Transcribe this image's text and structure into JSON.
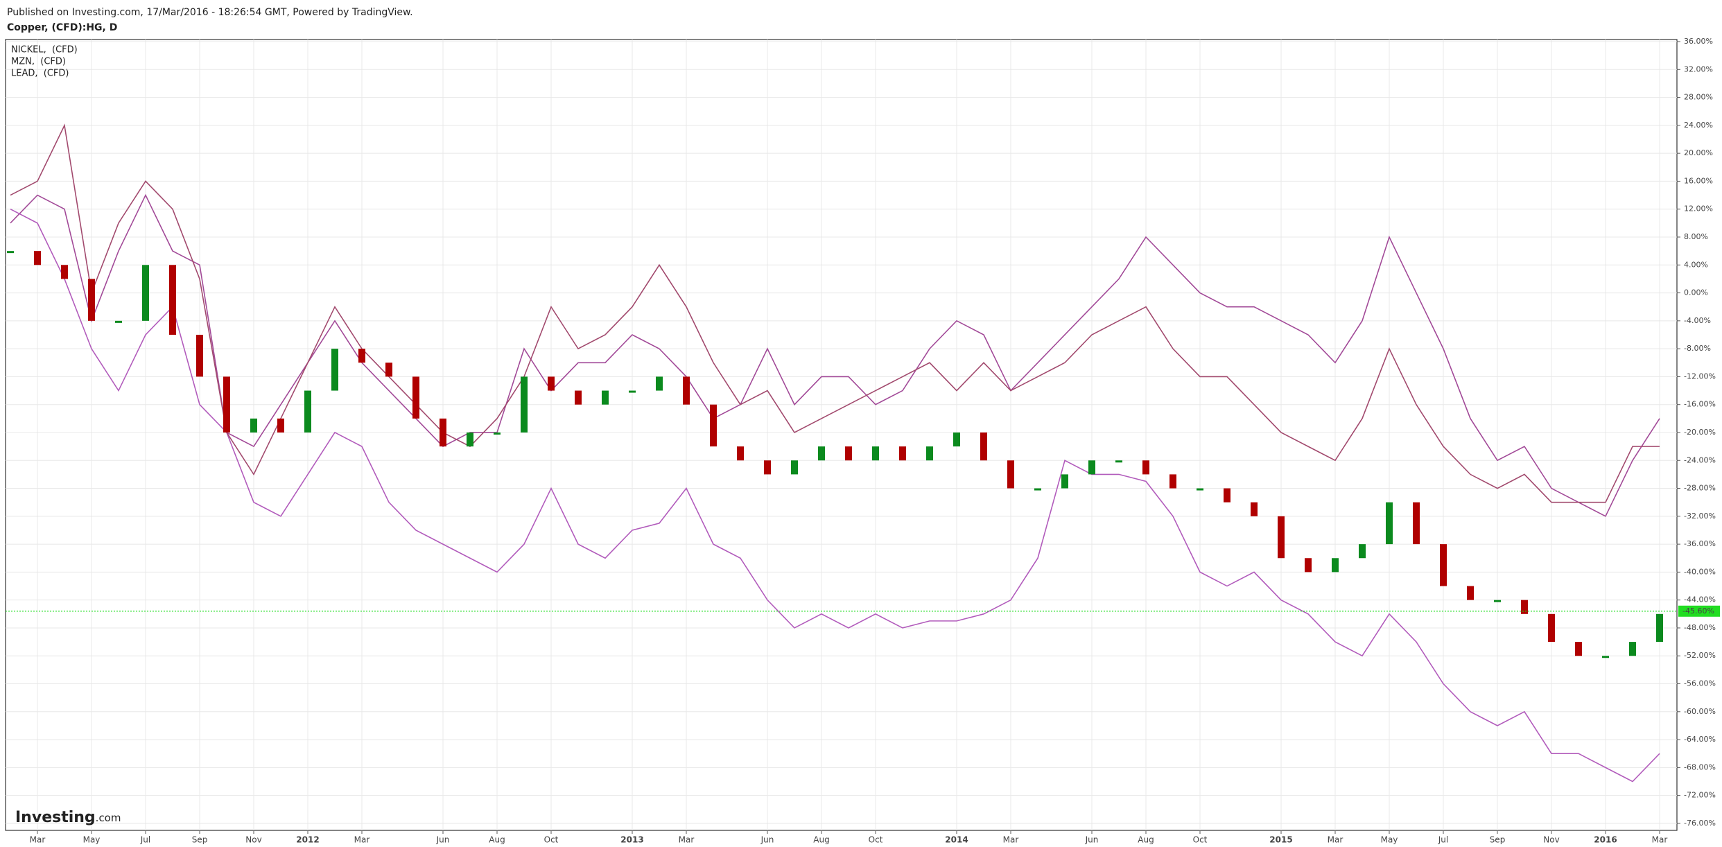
{
  "header": {
    "published": "Published on Investing.com, 17/Mar/2016 - 18:26:54 GMT, Powered by TradingView.",
    "symbol": "Copper, (CFD):HG, D"
  },
  "logo": {
    "name": "Investing",
    "suffix": ".com"
  },
  "chart_data": {
    "type": "line",
    "categories": [
      null,
      "Mar",
      null,
      "May",
      null,
      "Jul",
      null,
      "Sep",
      null,
      "Nov",
      null,
      "2012",
      null,
      "Mar",
      null,
      null,
      "Jun",
      null,
      "Aug",
      null,
      "Oct",
      null,
      null,
      "2013",
      null,
      "Mar",
      null,
      null,
      "Jun",
      null,
      "Aug",
      null,
      "Oct",
      null,
      null,
      "2014",
      null,
      "Mar",
      null,
      null,
      "Jun",
      null,
      "Aug",
      null,
      "Oct",
      null,
      null,
      "2015",
      null,
      "Mar",
      null,
      "May",
      null,
      "Jul",
      null,
      "Sep",
      null,
      "Nov",
      null,
      "2016",
      null,
      "Mar"
    ],
    "series": [
      {
        "name": "Copper, (CFD):HG, D",
        "style": "candle",
        "up_color": "#0b8a1e",
        "down_color": "#b00000",
        "values": [
          6,
          4,
          2,
          -4,
          -4,
          4,
          -6,
          -12,
          -20,
          -18,
          -20,
          -14,
          -8,
          -10,
          -12,
          -18,
          -22,
          -20,
          -20,
          -12,
          -14,
          -16,
          -14,
          -14,
          -12,
          -16,
          -22,
          -24,
          -26,
          -24,
          -22,
          -24,
          -22,
          -24,
          -22,
          -20,
          -24,
          -28,
          -28,
          -26,
          -24,
          -24,
          -26,
          -28,
          -28,
          -30,
          -32,
          -38,
          -40,
          -38,
          -36,
          -30,
          -36,
          -42,
          -44,
          -44,
          -46,
          -50,
          -52,
          -52,
          -50,
          -46
        ]
      },
      {
        "name": "NICKEL,  (CFD)",
        "color": "#a24a98",
        "values": [
          10,
          14,
          12,
          -4,
          6,
          14,
          6,
          4,
          -20,
          -22,
          -16,
          -10,
          -4,
          -10,
          -14,
          -18,
          -22,
          -20,
          -20,
          -8,
          -14,
          -10,
          -10,
          -6,
          -8,
          -12,
          -18,
          -16,
          -8,
          -16,
          -12,
          -12,
          -16,
          -14,
          -8,
          -4,
          -6,
          -14,
          -10,
          -6,
          -2,
          2,
          8,
          4,
          0,
          -2,
          -2,
          -4,
          -6,
          -10,
          -4,
          8,
          0,
          -8,
          -18,
          -24,
          -22,
          -28,
          -30,
          -32,
          -24,
          -18
        ]
      },
      {
        "name": "MZN,  (CFD)",
        "color": "#b25cbc",
        "values": [
          12,
          10,
          2,
          -8,
          -14,
          -6,
          -2,
          -16,
          -20,
          -30,
          -32,
          -26,
          -20,
          -22,
          -30,
          -34,
          -36,
          -38,
          -40,
          -36,
          -28,
          -36,
          -38,
          -34,
          -33,
          -28,
          -36,
          -38,
          -44,
          -48,
          -46,
          -48,
          -46,
          -48,
          -47,
          -47,
          -46,
          -44,
          -38,
          -24,
          -26,
          -26,
          -27,
          -32,
          -40,
          -42,
          -40,
          -44,
          -46,
          -50,
          -52,
          -46,
          -50,
          -56,
          -60,
          -62,
          -60,
          -66,
          -66,
          -68,
          -70,
          -66
        ]
      },
      {
        "name": "LEAD,  (CFD)",
        "color": "#a24a6e",
        "values": [
          14,
          16,
          24,
          0,
          10,
          16,
          12,
          2,
          -20,
          -26,
          -18,
          -10,
          -2,
          -8,
          -12,
          -16,
          -20,
          -22,
          -18,
          -12,
          -2,
          -8,
          -6,
          -2,
          4,
          -2,
          -10,
          -16,
          -14,
          -20,
          -18,
          -16,
          -14,
          -12,
          -10,
          -14,
          -10,
          -14,
          -12,
          -10,
          -6,
          -4,
          -2,
          -8,
          -12,
          -12,
          -16,
          -20,
          -22,
          -24,
          -18,
          -8,
          -16,
          -22,
          -26,
          -28,
          -26,
          -30,
          -30,
          -30,
          -22,
          -22
        ]
      }
    ],
    "ylim": [
      -77,
      36.3
    ],
    "yticks": [
      {
        "value": 36,
        "label": "36.00%"
      },
      {
        "value": 32,
        "label": "32.00%"
      },
      {
        "value": 28,
        "label": "28.00%"
      },
      {
        "value": 24,
        "label": "24.00%"
      },
      {
        "value": 20,
        "label": "20.00%"
      },
      {
        "value": 16,
        "label": "16.00%"
      },
      {
        "value": 12,
        "label": "12.00%"
      },
      {
        "value": 8,
        "label": "8.00%"
      },
      {
        "value": 4,
        "label": "4.00%"
      },
      {
        "value": 0,
        "label": "0.00%"
      },
      {
        "value": -4,
        "label": "-4.00%"
      },
      {
        "value": -8,
        "label": "-8.00%"
      },
      {
        "value": -12,
        "label": "-12.00%"
      },
      {
        "value": -16,
        "label": "-16.00%"
      },
      {
        "value": -20,
        "label": "-20.00%"
      },
      {
        "value": -24,
        "label": "-24.00%"
      },
      {
        "value": -28,
        "label": "-28.00%"
      },
      {
        "value": -32,
        "label": "-32.00%"
      },
      {
        "value": -36,
        "label": "-36.00%"
      },
      {
        "value": -40,
        "label": "-40.00%"
      },
      {
        "value": -44,
        "label": "-44.00%"
      },
      {
        "value": -48,
        "label": "-48.00%"
      },
      {
        "value": -52,
        "label": "-52.00%"
      },
      {
        "value": -56,
        "label": "-56.00%"
      },
      {
        "value": -60,
        "label": "-60.00%"
      },
      {
        "value": -64,
        "label": "-64.00%"
      },
      {
        "value": -68,
        "label": "-68.00%"
      },
      {
        "value": -72,
        "label": "-72.00%"
      },
      {
        "value": -76,
        "label": "-76.00%"
      }
    ],
    "current_value": {
      "value": -45.6,
      "label": "-45.60%",
      "color": "#22dd22"
    },
    "grid": true
  }
}
